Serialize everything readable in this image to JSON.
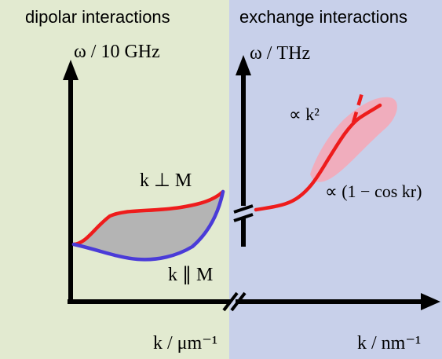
{
  "panels": {
    "left": {
      "title": "dipolar interactions",
      "background": "#e2ead0"
    },
    "right": {
      "title": "exchange interactions",
      "background": "#c8d0ea"
    }
  },
  "axes": {
    "left_y_label": "ω / 10 GHz",
    "right_y_label": "ω / THz",
    "left_x_label": "k / μm⁻¹",
    "right_x_label": "k / nm⁻¹"
  },
  "annotations": {
    "k_perp_M": "k ⊥ M",
    "k_par_M": "k ∥ M",
    "quadratic": "∝ k²",
    "cosine": "∝ (1 − cos kr)"
  },
  "colors": {
    "red_branch": "#ee1c1c",
    "blue_branch": "#4a3bd8",
    "fill_between": "#b4b4b4",
    "pink_band": "#f4a8b8",
    "axis": "#000000"
  }
}
